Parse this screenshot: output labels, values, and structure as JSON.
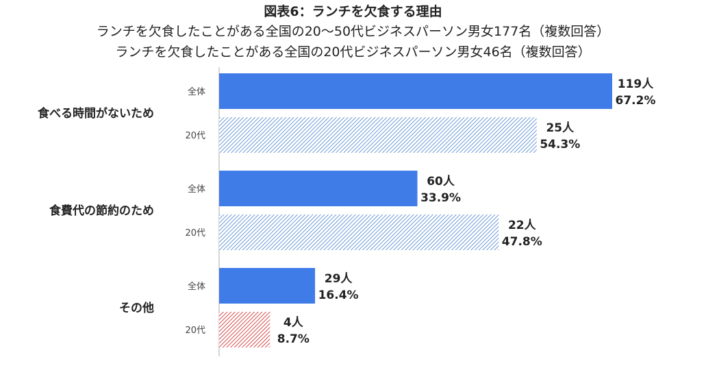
{
  "chart_data": {
    "type": "bar",
    "orientation": "horizontal",
    "title": "図表6：ランチを欠食する理由",
    "subtitle_1": "ランチを欠食したことがある全国の20～50代ビジネスパーソン男女177名（複数回答）",
    "subtitle_2": "ランチを欠食したことがある全国の20代ビジネスパーソン男女46名（複数回答）",
    "series": [
      {
        "name": "全体",
        "color": "#3f7ce8"
      },
      {
        "name": "20代",
        "hatch_colors": [
          "#6b9ad6",
          "#6b9ad6",
          "#d84a4a",
          "#6b9ad6"
        ]
      }
    ],
    "categories": [
      {
        "label": "食べる時間がないため",
        "bars": [
          {
            "group": "全体",
            "count_label": "119人",
            "pct_label": "67.2%",
            "value": 67.2
          },
          {
            "group": "20代",
            "count_label": "25人",
            "pct_label": "54.3%",
            "value": 54.3
          }
        ]
      },
      {
        "label": "食費代の節約のため",
        "bars": [
          {
            "group": "全体",
            "count_label": "60人",
            "pct_label": "33.9%",
            "value": 33.9
          },
          {
            "group": "20代",
            "count_label": "22人",
            "pct_label": "47.8%",
            "value": 47.8
          }
        ]
      },
      {
        "label": "その他",
        "bars": [
          {
            "group": "全体",
            "count_label": "29人",
            "pct_label": "16.4%",
            "value": 16.4
          },
          {
            "group": "20代",
            "count_label": "4人",
            "pct_label": "8.7%",
            "value": 8.7
          }
        ]
      }
    ],
    "xlim": [
      0,
      67.2
    ],
    "grid": false,
    "legend": "none"
  }
}
